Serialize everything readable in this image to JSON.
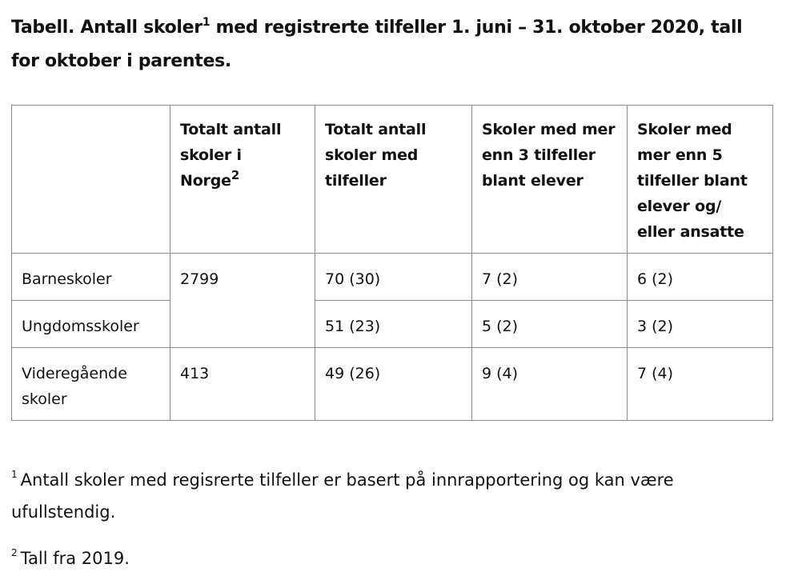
{
  "caption": {
    "part1": "Tabell. Antall skoler",
    "sup": "1",
    "part2": " med registrerte tilfeller 1. juni – 31. oktober 2020, tall for oktober i parentes."
  },
  "table": {
    "headers": [
      {
        "text": "",
        "sup": ""
      },
      {
        "text": "Totalt antall skoler i Norge",
        "sup": "2"
      },
      {
        "text": "Totalt antall skoler med tilfeller",
        "sup": ""
      },
      {
        "text": "Skoler med mer enn 3 tilfeller blant elever",
        "sup": ""
      },
      {
        "text": "Skoler med mer enn 5 tilfeller blant elever og/ eller ansatte",
        "sup": ""
      }
    ],
    "rows": [
      {
        "label": "Barneskoler",
        "total": "2799",
        "with_cases": "70 (30)",
        "more_than_3": "7 (2)",
        "more_than_5": "6 (2)"
      },
      {
        "label": "Ungdomsskoler",
        "with_cases": "51 (23)",
        "more_than_3": "5 (2)",
        "more_than_5": "3 (2)"
      },
      {
        "label": "Videregående skoler",
        "total": "413",
        "with_cases": "49 (26)",
        "more_than_3": "9 (4)",
        "more_than_5": "7 (4)"
      }
    ]
  },
  "footnotes": [
    {
      "marker": "1",
      "text": "Antall skoler med regisrerte tilfeller er basert på innrapportering og kan være ufullstendig."
    },
    {
      "marker": "2",
      "text": "Tall fra 2019."
    }
  ]
}
